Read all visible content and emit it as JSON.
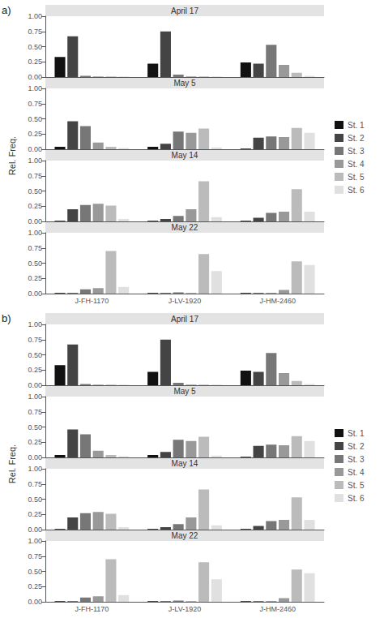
{
  "chart_data": [
    {
      "type": "bar",
      "title": "April 17",
      "annotations": [
        "a)"
      ],
      "ylabel": "Rel. Freq.",
      "legend": "right",
      "grid": false,
      "tick_labels": "y",
      "categories": [
        "J-FH-1170",
        "J-LV-1920",
        "J-HM-2460"
      ],
      "ylim": [
        0,
        1
      ],
      "yticks": [
        {
          "value": 0,
          "label": "0.00"
        },
        0.25,
        {
          "value": 0.5,
          "label": "0.50"
        },
        0.75,
        {
          "value": 1,
          "label": "1.00"
        }
      ],
      "series": [
        {
          "name": "St. 1",
          "color": "#111111",
          "values": [
            0.33,
            0.22,
            0.24
          ]
        },
        {
          "name": "St. 2",
          "color": "#444444",
          "values": [
            0.67,
            0.75,
            0.22
          ]
        },
        {
          "name": "St. 3",
          "color": "#777777",
          "values": [
            0.02,
            0.04,
            0.53
          ]
        },
        {
          "name": "St. 4",
          "color": "#999999",
          "values": [
            0.01,
            0.01,
            0.2
          ]
        },
        {
          "name": "St. 5",
          "color": "#bbbbbb",
          "values": [
            0.01,
            0.01,
            0.07
          ]
        },
        {
          "name": "St. 6",
          "color": "#e0e0e0",
          "values": [
            0.01,
            0.01,
            0.02
          ]
        }
      ]
    },
    {
      "type": "bar",
      "title": "May 5",
      "grid": false,
      "tick_labels": "y",
      "categories": [
        "J-FH-1170",
        "J-LV-1920",
        "J-HM-2460"
      ],
      "ylim": [
        0,
        1
      ],
      "yticks": [
        {
          "value": 0,
          "label": "0.00"
        },
        0.25,
        {
          "value": 0.5,
          "label": "0.50"
        },
        0.75,
        {
          "value": 1,
          "label": "1.00"
        }
      ],
      "series": [
        {
          "name": "St. 1",
          "color": "#111111",
          "values": [
            0.04,
            0.04,
            0.01
          ]
        },
        {
          "name": "St. 2",
          "color": "#444444",
          "values": [
            0.46,
            0.09,
            0.19
          ]
        },
        {
          "name": "St. 3",
          "color": "#777777",
          "values": [
            0.38,
            0.29,
            0.21
          ]
        },
        {
          "name": "St. 4",
          "color": "#999999",
          "values": [
            0.11,
            0.27,
            0.2
          ]
        },
        {
          "name": "St. 5",
          "color": "#bbbbbb",
          "values": [
            0.04,
            0.34,
            0.35
          ]
        },
        {
          "name": "St. 6",
          "color": "#e0e0e0",
          "values": [
            0.02,
            0.03,
            0.27
          ]
        }
      ]
    },
    {
      "type": "bar",
      "title": "May 14",
      "grid": false,
      "tick_labels": "y",
      "categories": [
        "J-FH-1170",
        "J-LV-1920",
        "J-HM-2460"
      ],
      "ylim": [
        0,
        1
      ],
      "yticks": [
        {
          "value": 0,
          "label": "0.00"
        },
        0.25,
        {
          "value": 0.5,
          "label": "0.50"
        },
        0.75,
        {
          "value": 1,
          "label": "1.00"
        }
      ],
      "series": [
        {
          "name": "St. 1",
          "color": "#111111",
          "values": [
            0.01,
            0.01,
            0.01
          ]
        },
        {
          "name": "St. 2",
          "color": "#444444",
          "values": [
            0.2,
            0.04,
            0.06
          ]
        },
        {
          "name": "St. 3",
          "color": "#777777",
          "values": [
            0.27,
            0.09,
            0.14
          ]
        },
        {
          "name": "St. 4",
          "color": "#999999",
          "values": [
            0.29,
            0.2,
            0.16
          ]
        },
        {
          "name": "St. 5",
          "color": "#bbbbbb",
          "values": [
            0.26,
            0.66,
            0.53
          ]
        },
        {
          "name": "St. 6",
          "color": "#e0e0e0",
          "values": [
            0.04,
            0.07,
            0.16
          ]
        }
      ]
    },
    {
      "type": "bar",
      "title": "May 22",
      "grid": false,
      "categories": [
        "J-FH-1170",
        "J-LV-1920",
        "J-HM-2460"
      ],
      "ylim": [
        0,
        1
      ],
      "yticks": [
        {
          "value": 0,
          "label": "0.00"
        },
        0.25,
        {
          "value": 0.5,
          "label": "0.50"
        },
        0.75,
        {
          "value": 1,
          "label": "1.00"
        }
      ],
      "series": [
        {
          "name": "St. 1",
          "color": "#111111",
          "values": [
            0.01,
            0.01,
            0.01
          ]
        },
        {
          "name": "St. 2",
          "color": "#444444",
          "values": [
            0.01,
            0.01,
            0.01
          ]
        },
        {
          "name": "St. 3",
          "color": "#777777",
          "values": [
            0.07,
            0.02,
            0.01
          ]
        },
        {
          "name": "St. 4",
          "color": "#999999",
          "values": [
            0.09,
            0.01,
            0.06
          ]
        },
        {
          "name": "St. 5",
          "color": "#bbbbbb",
          "values": [
            0.7,
            0.65,
            0.53
          ]
        },
        {
          "name": "St. 6",
          "color": "#e0e0e0",
          "values": [
            0.11,
            0.37,
            0.47
          ]
        }
      ]
    },
    {
      "type": "bar",
      "title": "April 17",
      "annotations": [
        "b)"
      ],
      "ylabel": "Rel. Freq.",
      "legend": "right",
      "grid": false,
      "tick_labels": "y",
      "categories": [
        "J-FH-1170",
        "J-LV-1920",
        "J-HM-2460"
      ],
      "ylim": [
        0,
        1
      ],
      "yticks": [
        {
          "value": 0,
          "label": "0.00"
        },
        0.25,
        {
          "value": 0.5,
          "label": "0.50"
        },
        0.75,
        {
          "value": 1,
          "label": "1.00"
        }
      ],
      "series": [
        {
          "name": "St. 1",
          "color": "#111111",
          "values": [
            0.33,
            0.22,
            0.24
          ]
        },
        {
          "name": "St. 2",
          "color": "#444444",
          "values": [
            0.67,
            0.75,
            0.22
          ]
        },
        {
          "name": "St. 3",
          "color": "#777777",
          "values": [
            0.02,
            0.04,
            0.53
          ]
        },
        {
          "name": "St. 4",
          "color": "#999999",
          "values": [
            0.01,
            0.01,
            0.2
          ]
        },
        {
          "name": "St. 5",
          "color": "#bbbbbb",
          "values": [
            0.01,
            0.01,
            0.07
          ]
        },
        {
          "name": "St. 6",
          "color": "#e0e0e0",
          "values": [
            0.01,
            0.01,
            0.02
          ]
        }
      ]
    },
    {
      "type": "bar",
      "title": "May 5",
      "grid": false,
      "tick_labels": "y",
      "categories": [
        "J-FH-1170",
        "J-LV-1920",
        "J-HM-2460"
      ],
      "ylim": [
        0,
        1
      ],
      "yticks": [
        {
          "value": 0,
          "label": "0.00"
        },
        0.25,
        {
          "value": 0.5,
          "label": "0.50"
        },
        0.75,
        {
          "value": 1,
          "label": "1.00"
        }
      ],
      "series": [
        {
          "name": "St. 1",
          "color": "#111111",
          "values": [
            0.04,
            0.04,
            0.01
          ]
        },
        {
          "name": "St. 2",
          "color": "#444444",
          "values": [
            0.46,
            0.09,
            0.19
          ]
        },
        {
          "name": "St. 3",
          "color": "#777777",
          "values": [
            0.38,
            0.29,
            0.21
          ]
        },
        {
          "name": "St. 4",
          "color": "#999999",
          "values": [
            0.11,
            0.27,
            0.2
          ]
        },
        {
          "name": "St. 5",
          "color": "#bbbbbb",
          "values": [
            0.04,
            0.34,
            0.35
          ]
        },
        {
          "name": "St. 6",
          "color": "#e0e0e0",
          "values": [
            0.02,
            0.03,
            0.27
          ]
        }
      ]
    },
    {
      "type": "bar",
      "title": "May 14",
      "grid": false,
      "tick_labels": "y",
      "categories": [
        "J-FH-1170",
        "J-LV-1920",
        "J-HM-2460"
      ],
      "ylim": [
        0,
        1
      ],
      "yticks": [
        {
          "value": 0,
          "label": "0.00"
        },
        0.25,
        {
          "value": 0.5,
          "label": "0.50"
        },
        0.75,
        {
          "value": 1,
          "label": "1.00"
        }
      ],
      "series": [
        {
          "name": "St. 1",
          "color": "#111111",
          "values": [
            0.01,
            0.01,
            0.01
          ]
        },
        {
          "name": "St. 2",
          "color": "#444444",
          "values": [
            0.2,
            0.04,
            0.06
          ]
        },
        {
          "name": "St. 3",
          "color": "#777777",
          "values": [
            0.27,
            0.09,
            0.14
          ]
        },
        {
          "name": "St. 4",
          "color": "#999999",
          "values": [
            0.29,
            0.2,
            0.16
          ]
        },
        {
          "name": "St. 5",
          "color": "#bbbbbb",
          "values": [
            0.26,
            0.66,
            0.53
          ]
        },
        {
          "name": "St. 6",
          "color": "#e0e0e0",
          "values": [
            0.04,
            0.07,
            0.16
          ]
        }
      ]
    },
    {
      "type": "bar",
      "title": "May 22",
      "grid": false,
      "categories": [
        "J-FH-1170",
        "J-LV-1920",
        "J-HM-2460"
      ],
      "ylim": [
        0,
        1
      ],
      "yticks": [
        {
          "value": 0,
          "label": "0.00"
        },
        0.25,
        {
          "value": 0.5,
          "label": "0.50"
        },
        0.75,
        {
          "value": 1,
          "label": "1.00"
        }
      ],
      "series": [
        {
          "name": "St. 1",
          "color": "#111111",
          "values": [
            0.01,
            0.01,
            0.01
          ]
        },
        {
          "name": "St. 2",
          "color": "#444444",
          "values": [
            0.01,
            0.01,
            0.01
          ]
        },
        {
          "name": "St. 3",
          "color": "#777777",
          "values": [
            0.07,
            0.02,
            0.01
          ]
        },
        {
          "name": "St. 4",
          "color": "#999999",
          "values": [
            0.09,
            0.01,
            0.06
          ]
        },
        {
          "name": "St. 5",
          "color": "#bbbbbb",
          "values": [
            0.7,
            0.65,
            0.53
          ]
        },
        {
          "name": "St. 6",
          "color": "#e0e0e0",
          "values": [
            0.11,
            0.37,
            0.47
          ]
        }
      ]
    }
  ]
}
